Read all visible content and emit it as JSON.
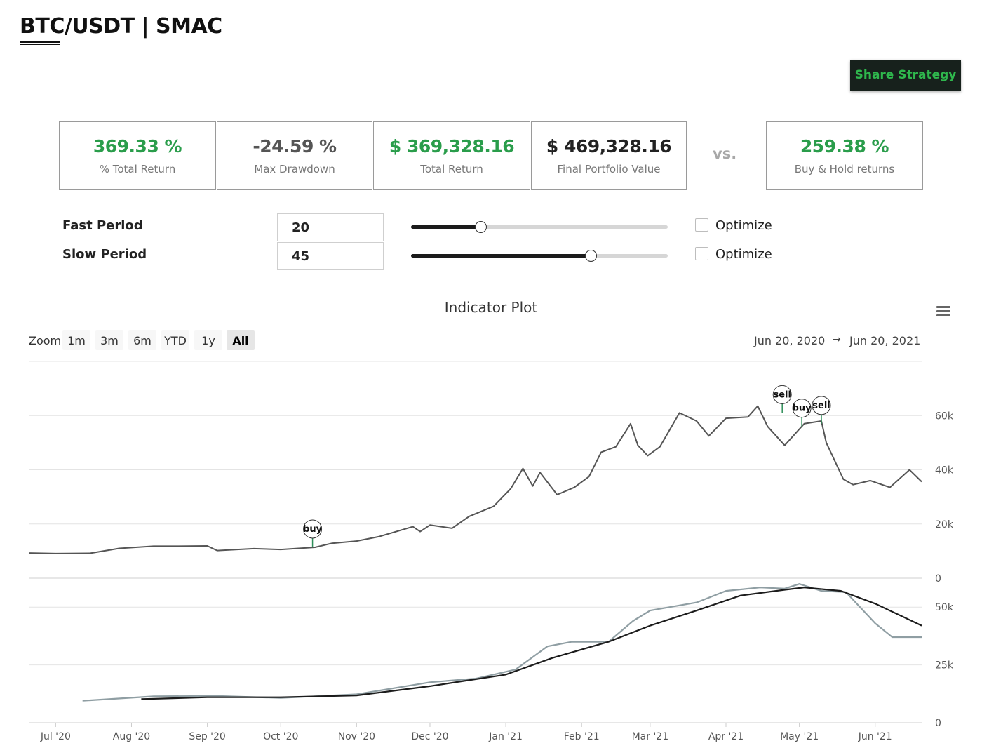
{
  "header": {
    "title": "BTC/USDT | SMAC"
  },
  "actions": {
    "share_label": "Share Strategy"
  },
  "stats": [
    {
      "value": "369.33 %",
      "label": "% Total Return",
      "color": "#2a9d4b"
    },
    {
      "value": "-24.59 %",
      "label": "Max Drawdown",
      "color": "#555555"
    },
    {
      "value": "$ 369,328.16",
      "label": "Total Return",
      "color": "#2a9d4b"
    },
    {
      "value": "$ 469,328.16",
      "label": "Final Portfolio Value",
      "color": "#222222"
    }
  ],
  "vs_label": "vs.",
  "benchmark": {
    "value": "259.38 %",
    "label": "Buy & Hold returns",
    "color": "#2a9d4b"
  },
  "params": [
    {
      "label": "Fast Period",
      "value": "20",
      "slider_fraction": 0.27,
      "optimize_label": "Optimize",
      "optimize_checked": false
    },
    {
      "label": "Slow Period",
      "value": "45",
      "slider_fraction": 0.7,
      "optimize_label": "Optimize",
      "optimize_checked": false
    }
  ],
  "chart": {
    "title": "Indicator Plot",
    "zoom_label": "Zoom",
    "zoom_buttons": [
      "1m",
      "3m",
      "6m",
      "YTD",
      "1y",
      "All"
    ],
    "zoom_selected": "All",
    "range_from": "Jun 20, 2020",
    "range_arrow": "→",
    "range_to": "Jun 20, 2021",
    "menu_icon": "hamburger-menu-icon"
  },
  "chart_data": {
    "type": "line",
    "x_range": [
      "2020-06-20",
      "2021-06-20"
    ],
    "x_ticks": [
      "Jul '20",
      "Aug '20",
      "Sep '20",
      "Oct '20",
      "Nov '20",
      "Dec '20",
      "Jan '21",
      "Feb '21",
      "Mar '21",
      "Apr '21",
      "May '21",
      "Jun '21"
    ],
    "panes": [
      {
        "yticks": [
          "0",
          "20k",
          "40k",
          "60k"
        ],
        "ylim": [
          0,
          80000
        ],
        "series": [
          {
            "color": "#555555",
            "points": [
              [
                "2020-06-20",
                9300
              ],
              [
                "2020-07-01",
                9100
              ],
              [
                "2020-07-15",
                9200
              ],
              [
                "2020-07-27",
                11000
              ],
              [
                "2020-08-10",
                11800
              ],
              [
                "2020-08-20",
                11800
              ],
              [
                "2020-09-01",
                11900
              ],
              [
                "2020-09-05",
                10200
              ],
              [
                "2020-09-20",
                10900
              ],
              [
                "2020-10-01",
                10600
              ],
              [
                "2020-10-15",
                11400
              ],
              [
                "2020-10-22",
                12900
              ],
              [
                "2020-11-01",
                13700
              ],
              [
                "2020-11-10",
                15300
              ],
              [
                "2020-11-24",
                19000
              ],
              [
                "2020-11-27",
                17200
              ],
              [
                "2020-12-01",
                19600
              ],
              [
                "2020-12-10",
                18400
              ],
              [
                "2020-12-17",
                22800
              ],
              [
                "2020-12-27",
                26500
              ],
              [
                "2021-01-03",
                33000
              ],
              [
                "2021-01-08",
                40500
              ],
              [
                "2021-01-12",
                34000
              ],
              [
                "2021-01-15",
                39000
              ],
              [
                "2021-01-22",
                30800
              ],
              [
                "2021-01-29",
                33500
              ],
              [
                "2021-02-04",
                37500
              ],
              [
                "2021-02-09",
                46500
              ],
              [
                "2021-02-15",
                48500
              ],
              [
                "2021-02-21",
                57000
              ],
              [
                "2021-02-24",
                49000
              ],
              [
                "2021-02-28",
                45200
              ],
              [
                "2021-03-05",
                48500
              ],
              [
                "2021-03-13",
                61000
              ],
              [
                "2021-03-20",
                58000
              ],
              [
                "2021-03-25",
                52500
              ],
              [
                "2021-04-01",
                59000
              ],
              [
                "2021-04-10",
                59500
              ],
              [
                "2021-04-14",
                63500
              ],
              [
                "2021-04-18",
                56000
              ],
              [
                "2021-04-25",
                49000
              ],
              [
                "2021-05-03",
                57000
              ],
              [
                "2021-05-10",
                58000
              ],
              [
                "2021-05-12",
                50000
              ],
              [
                "2021-05-19",
                36500
              ],
              [
                "2021-05-23",
                34500
              ],
              [
                "2021-05-30",
                36000
              ],
              [
                "2021-06-07",
                33500
              ],
              [
                "2021-06-15",
                40000
              ],
              [
                "2021-06-20",
                35600
              ]
            ]
          }
        ],
        "markers": [
          {
            "date": "2020-10-14",
            "price": 11400,
            "label": "buy"
          },
          {
            "date": "2021-04-24",
            "price": 61000,
            "label": "sell"
          },
          {
            "date": "2021-05-02",
            "price": 56000,
            "label": "buy"
          },
          {
            "date": "2021-05-10",
            "price": 57000,
            "label": "sell"
          }
        ]
      },
      {
        "yticks": [
          "0",
          "25k",
          "50k"
        ],
        "ylim": [
          0,
          62500
        ],
        "series": [
          {
            "name_hidden": "fast",
            "color": "#8f9ea3",
            "points": [
              [
                "2020-07-12",
                9500
              ],
              [
                "2020-08-10",
                11400
              ],
              [
                "2020-09-05",
                11600
              ],
              [
                "2020-10-01",
                10700
              ],
              [
                "2020-11-01",
                12300
              ],
              [
                "2020-12-01",
                17500
              ],
              [
                "2020-12-20",
                19100
              ],
              [
                "2021-01-05",
                23000
              ],
              [
                "2021-01-18",
                33000
              ],
              [
                "2021-01-28",
                35000
              ],
              [
                "2021-02-12",
                35000
              ],
              [
                "2021-02-22",
                44000
              ],
              [
                "2021-03-01",
                48500
              ],
              [
                "2021-03-20",
                52000
              ],
              [
                "2021-04-01",
                57000
              ],
              [
                "2021-04-15",
                58500
              ],
              [
                "2021-04-25",
                58000
              ],
              [
                "2021-05-01",
                60000
              ],
              [
                "2021-05-10",
                57000
              ],
              [
                "2021-05-20",
                56500
              ],
              [
                "2021-06-01",
                43000
              ],
              [
                "2021-06-08",
                37000
              ],
              [
                "2021-06-20",
                37000
              ]
            ]
          },
          {
            "name_hidden": "slow",
            "color": "#1c1c1c",
            "points": [
              [
                "2020-08-05",
                10200
              ],
              [
                "2020-09-01",
                11000
              ],
              [
                "2020-10-01",
                11000
              ],
              [
                "2020-11-01",
                11800
              ],
              [
                "2020-12-01",
                15800
              ],
              [
                "2021-01-01",
                20800
              ],
              [
                "2021-01-20",
                28000
              ],
              [
                "2021-02-12",
                35000
              ],
              [
                "2021-03-01",
                42000
              ],
              [
                "2021-03-20",
                48500
              ],
              [
                "2021-04-07",
                55000
              ],
              [
                "2021-04-25",
                57500
              ],
              [
                "2021-05-03",
                58500
              ],
              [
                "2021-05-18",
                57000
              ],
              [
                "2021-06-01",
                51500
              ],
              [
                "2021-06-20",
                42000
              ]
            ]
          }
        ]
      }
    ]
  }
}
